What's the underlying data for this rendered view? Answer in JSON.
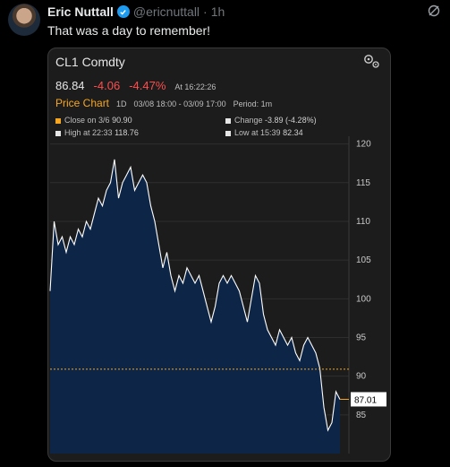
{
  "tweet": {
    "author_name": "Eric Nuttall",
    "author_handle": "@ericnuttall",
    "separator": "·",
    "time": "1h",
    "text": "That was a day to remember!"
  },
  "icons": {
    "verified": "verified-badge-icon",
    "grok": "grok-icon",
    "settings": "gears-icon"
  },
  "colors": {
    "accent": "#1d9bf0",
    "negative": "#ff4d4d",
    "price_chart_label": "#f5a623",
    "area_fill": "#0d2547",
    "line": "#ffffff",
    "close_line": "#f5a623"
  },
  "card": {
    "ticker": "CL1 Comdty",
    "last": "86.84",
    "change": "-4.06",
    "change_pct": "-4.47%",
    "at": "At 16:22:26",
    "chart_label": "Price Chart",
    "period_code": "1D",
    "date_range": "03/08 18:00 - 03/09 17:00",
    "period": "Period: 1m",
    "stats": {
      "close_label": "Close on 3/6",
      "close_value": "90.90",
      "high_label": "High at 22:33",
      "high_value": "118.76",
      "change_label": "Change",
      "change_value": "-3.89 (-4.28%)",
      "low_label": "Low at 15:39",
      "low_value": "82.34"
    },
    "current_tag": "87.01"
  },
  "chart_data": {
    "type": "area",
    "ylim": [
      80,
      121
    ],
    "yticks": [
      85,
      90,
      95,
      100,
      105,
      110,
      115,
      120
    ],
    "prev_close": 90.9,
    "current": 87.01,
    "grid": true,
    "values": [
      101,
      110,
      107,
      108,
      106,
      108,
      107,
      109,
      108,
      110,
      109,
      111,
      113,
      112,
      114,
      115,
      118,
      113,
      115,
      116,
      117,
      114,
      115,
      116,
      115,
      112,
      110,
      107,
      104,
      106,
      103,
      101,
      103,
      102,
      104,
      103,
      102,
      103,
      101,
      99,
      97,
      99,
      102,
      103,
      102,
      103,
      102,
      101,
      99,
      97,
      100,
      103,
      102,
      98,
      96,
      95,
      94,
      96,
      95,
      94,
      95,
      93,
      92,
      94,
      95,
      94,
      93,
      91,
      86,
      83,
      84,
      88,
      87
    ]
  }
}
